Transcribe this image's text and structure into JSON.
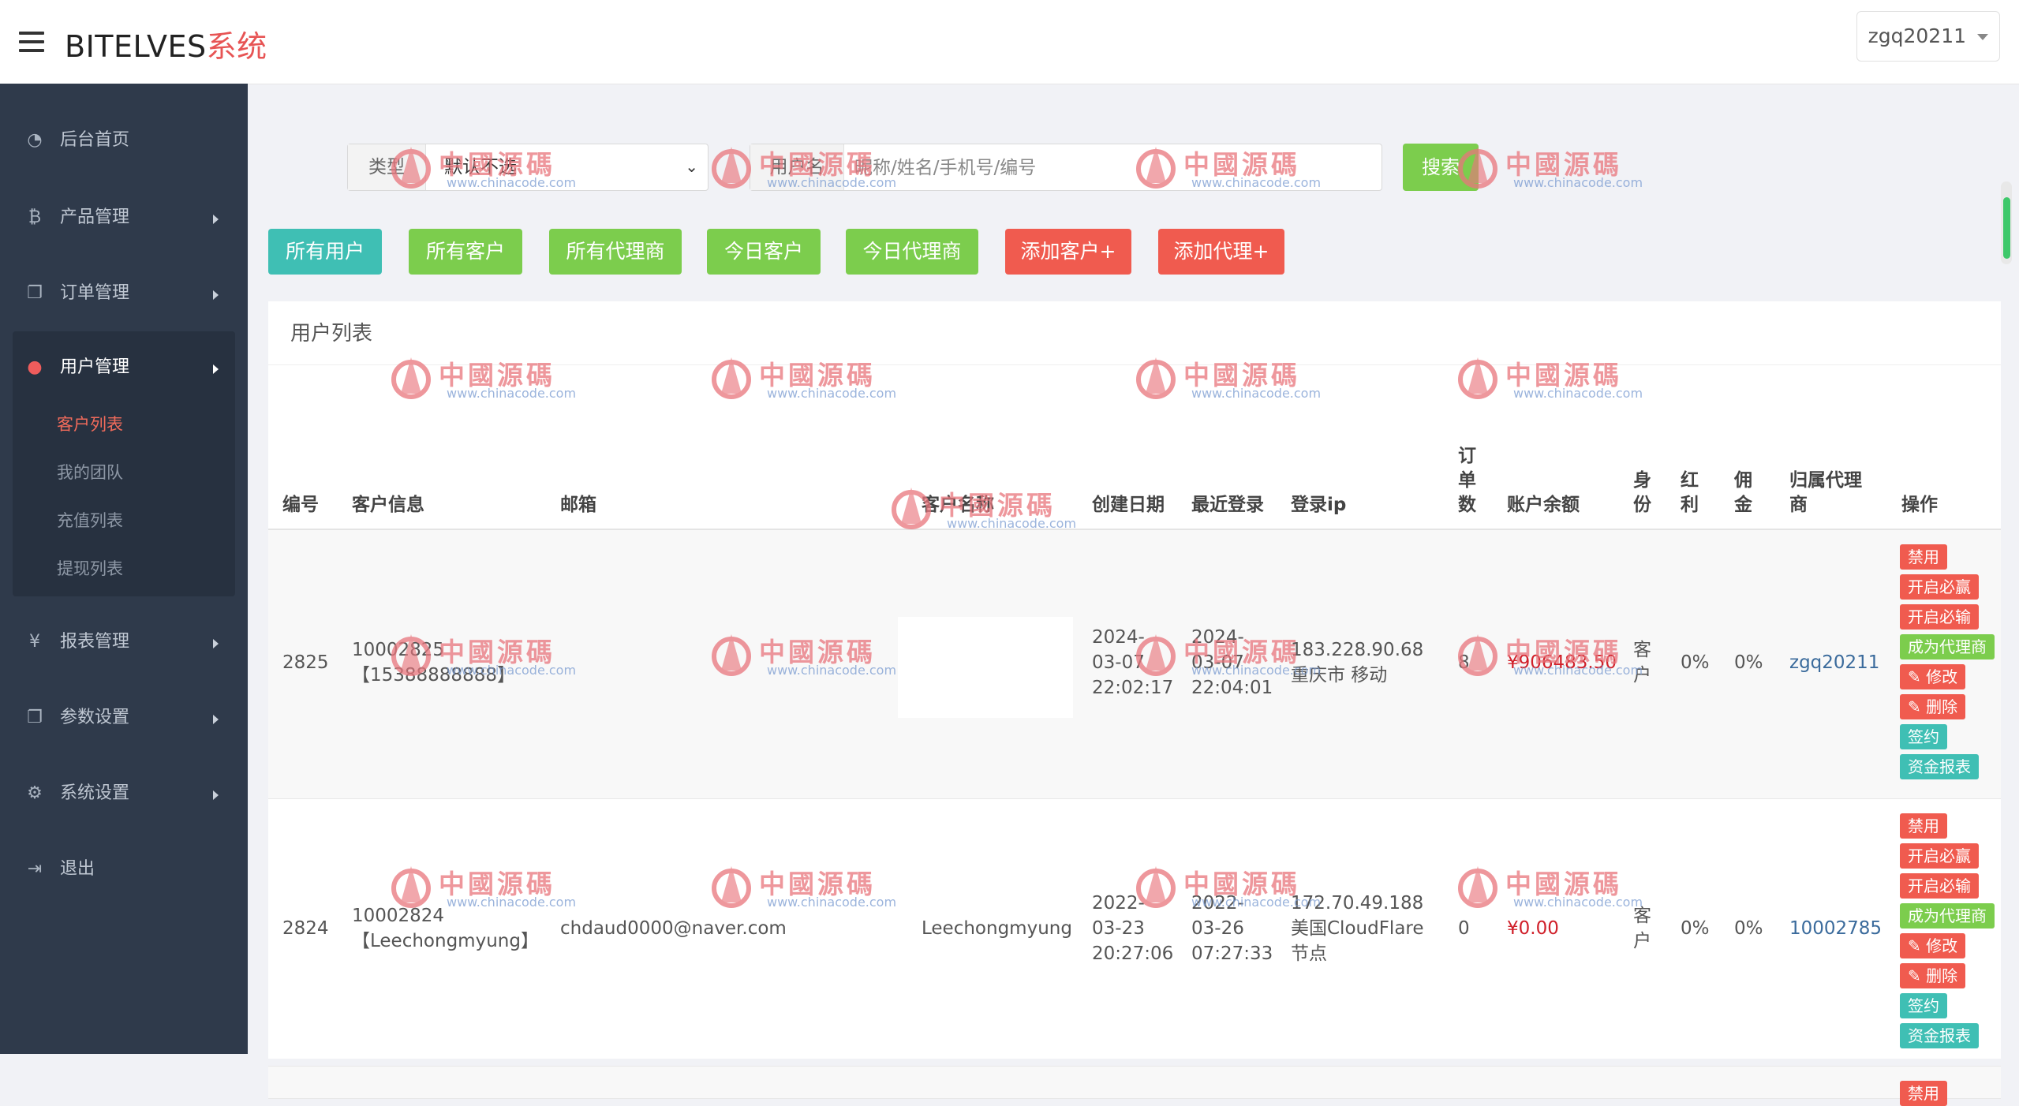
{
  "app": {
    "brand": "BITELVES",
    "brand_suffix": "系统",
    "user": "zgq20211"
  },
  "sidebar": {
    "items": [
      {
        "label": "后台首页",
        "icon": "dashboard-icon"
      },
      {
        "label": "产品管理",
        "icon": "bitcoin-icon"
      },
      {
        "label": "订单管理",
        "icon": "copy-icon"
      },
      {
        "label": "用户管理",
        "icon": "user-icon"
      },
      {
        "label": "报表管理",
        "icon": "yen-icon"
      },
      {
        "label": "参数设置",
        "icon": "copy-icon"
      },
      {
        "label": "系统设置",
        "icon": "gears-icon"
      },
      {
        "label": "退出",
        "icon": "sign-out-icon"
      }
    ],
    "sub_items": [
      "客户列表",
      "我的团队",
      "充值列表",
      "提现列表"
    ]
  },
  "search": {
    "type_label": "类型",
    "type_value": "默认不选",
    "user_label": "用户名",
    "user_placeholder": "昵称/姓名/手机号/编号",
    "button": "搜索"
  },
  "filters": [
    {
      "label": "所有用户",
      "color": "#3fbfb4"
    },
    {
      "label": "所有客户",
      "color": "#7ccd4d"
    },
    {
      "label": "所有代理商",
      "color": "#7ccd4d"
    },
    {
      "label": "今日客户",
      "color": "#7ccd4d"
    },
    {
      "label": "今日代理商",
      "color": "#7ccd4d"
    },
    {
      "label": "添加客户+",
      "color": "#f05b4f"
    },
    {
      "label": "添加代理+",
      "color": "#f05b4f"
    }
  ],
  "table": {
    "title": "用户列表",
    "headers": {
      "id": "编号",
      "info": "客户信息",
      "email": "邮箱",
      "name": "客户名称",
      "created": "创建日期",
      "last_login": "最近登录",
      "ip": "登录ip",
      "orders_1": "订",
      "orders_2": "单",
      "orders_3": "数",
      "balance": "账户余额",
      "role_1": "身",
      "role_2": "份",
      "bonus_1": "红",
      "bonus_2": "利",
      "comm_1": "佣",
      "comm_2": "金",
      "agent_1": "归属代理",
      "agent_2": "商",
      "ops": "操作"
    },
    "rows": [
      {
        "id": "2825",
        "info_1": "10002825",
        "info_2": "【15388888888】",
        "email": "",
        "name": "",
        "created_1": "2024-",
        "created_2": "03-07",
        "created_3": "22:02:17",
        "login_1": "2024-",
        "login_2": "03-07",
        "login_3": "22:04:01",
        "ip_1": "183.228.90.68",
        "ip_2": "重庆市 移动",
        "ip_3": "",
        "orders": "8",
        "balance": "¥906483.50",
        "role_1": "客",
        "role_2": "户",
        "bonus": "0%",
        "commission": "0%",
        "agent": "zgq20211"
      },
      {
        "id": "2824",
        "info_1": "10002824",
        "info_2": "【Leechongmyung】",
        "email": "chdaud0000@naver.com",
        "name": "Leechongmyung",
        "created_1": "2022-",
        "created_2": "03-23",
        "created_3": "20:27:06",
        "login_1": "2022-",
        "login_2": "03-26",
        "login_3": "07:27:33",
        "ip_1": "172.70.49.188",
        "ip_2": "美国CloudFlare",
        "ip_3": "节点",
        "orders": "0",
        "balance": "¥0.00",
        "role_1": "客",
        "role_2": "户",
        "bonus": "0%",
        "commission": "0%",
        "agent": "10002785"
      }
    ],
    "actions": {
      "disable": "禁用",
      "win": "开启必赢",
      "lose": "开启必输",
      "agent": "成为代理商",
      "edit": "✎ 修改",
      "delete": "✎ 删除",
      "sign": "签约",
      "report": "资金报表"
    }
  },
  "watermark": {
    "text": "中國源碼",
    "url": "www.chinacode.com"
  }
}
